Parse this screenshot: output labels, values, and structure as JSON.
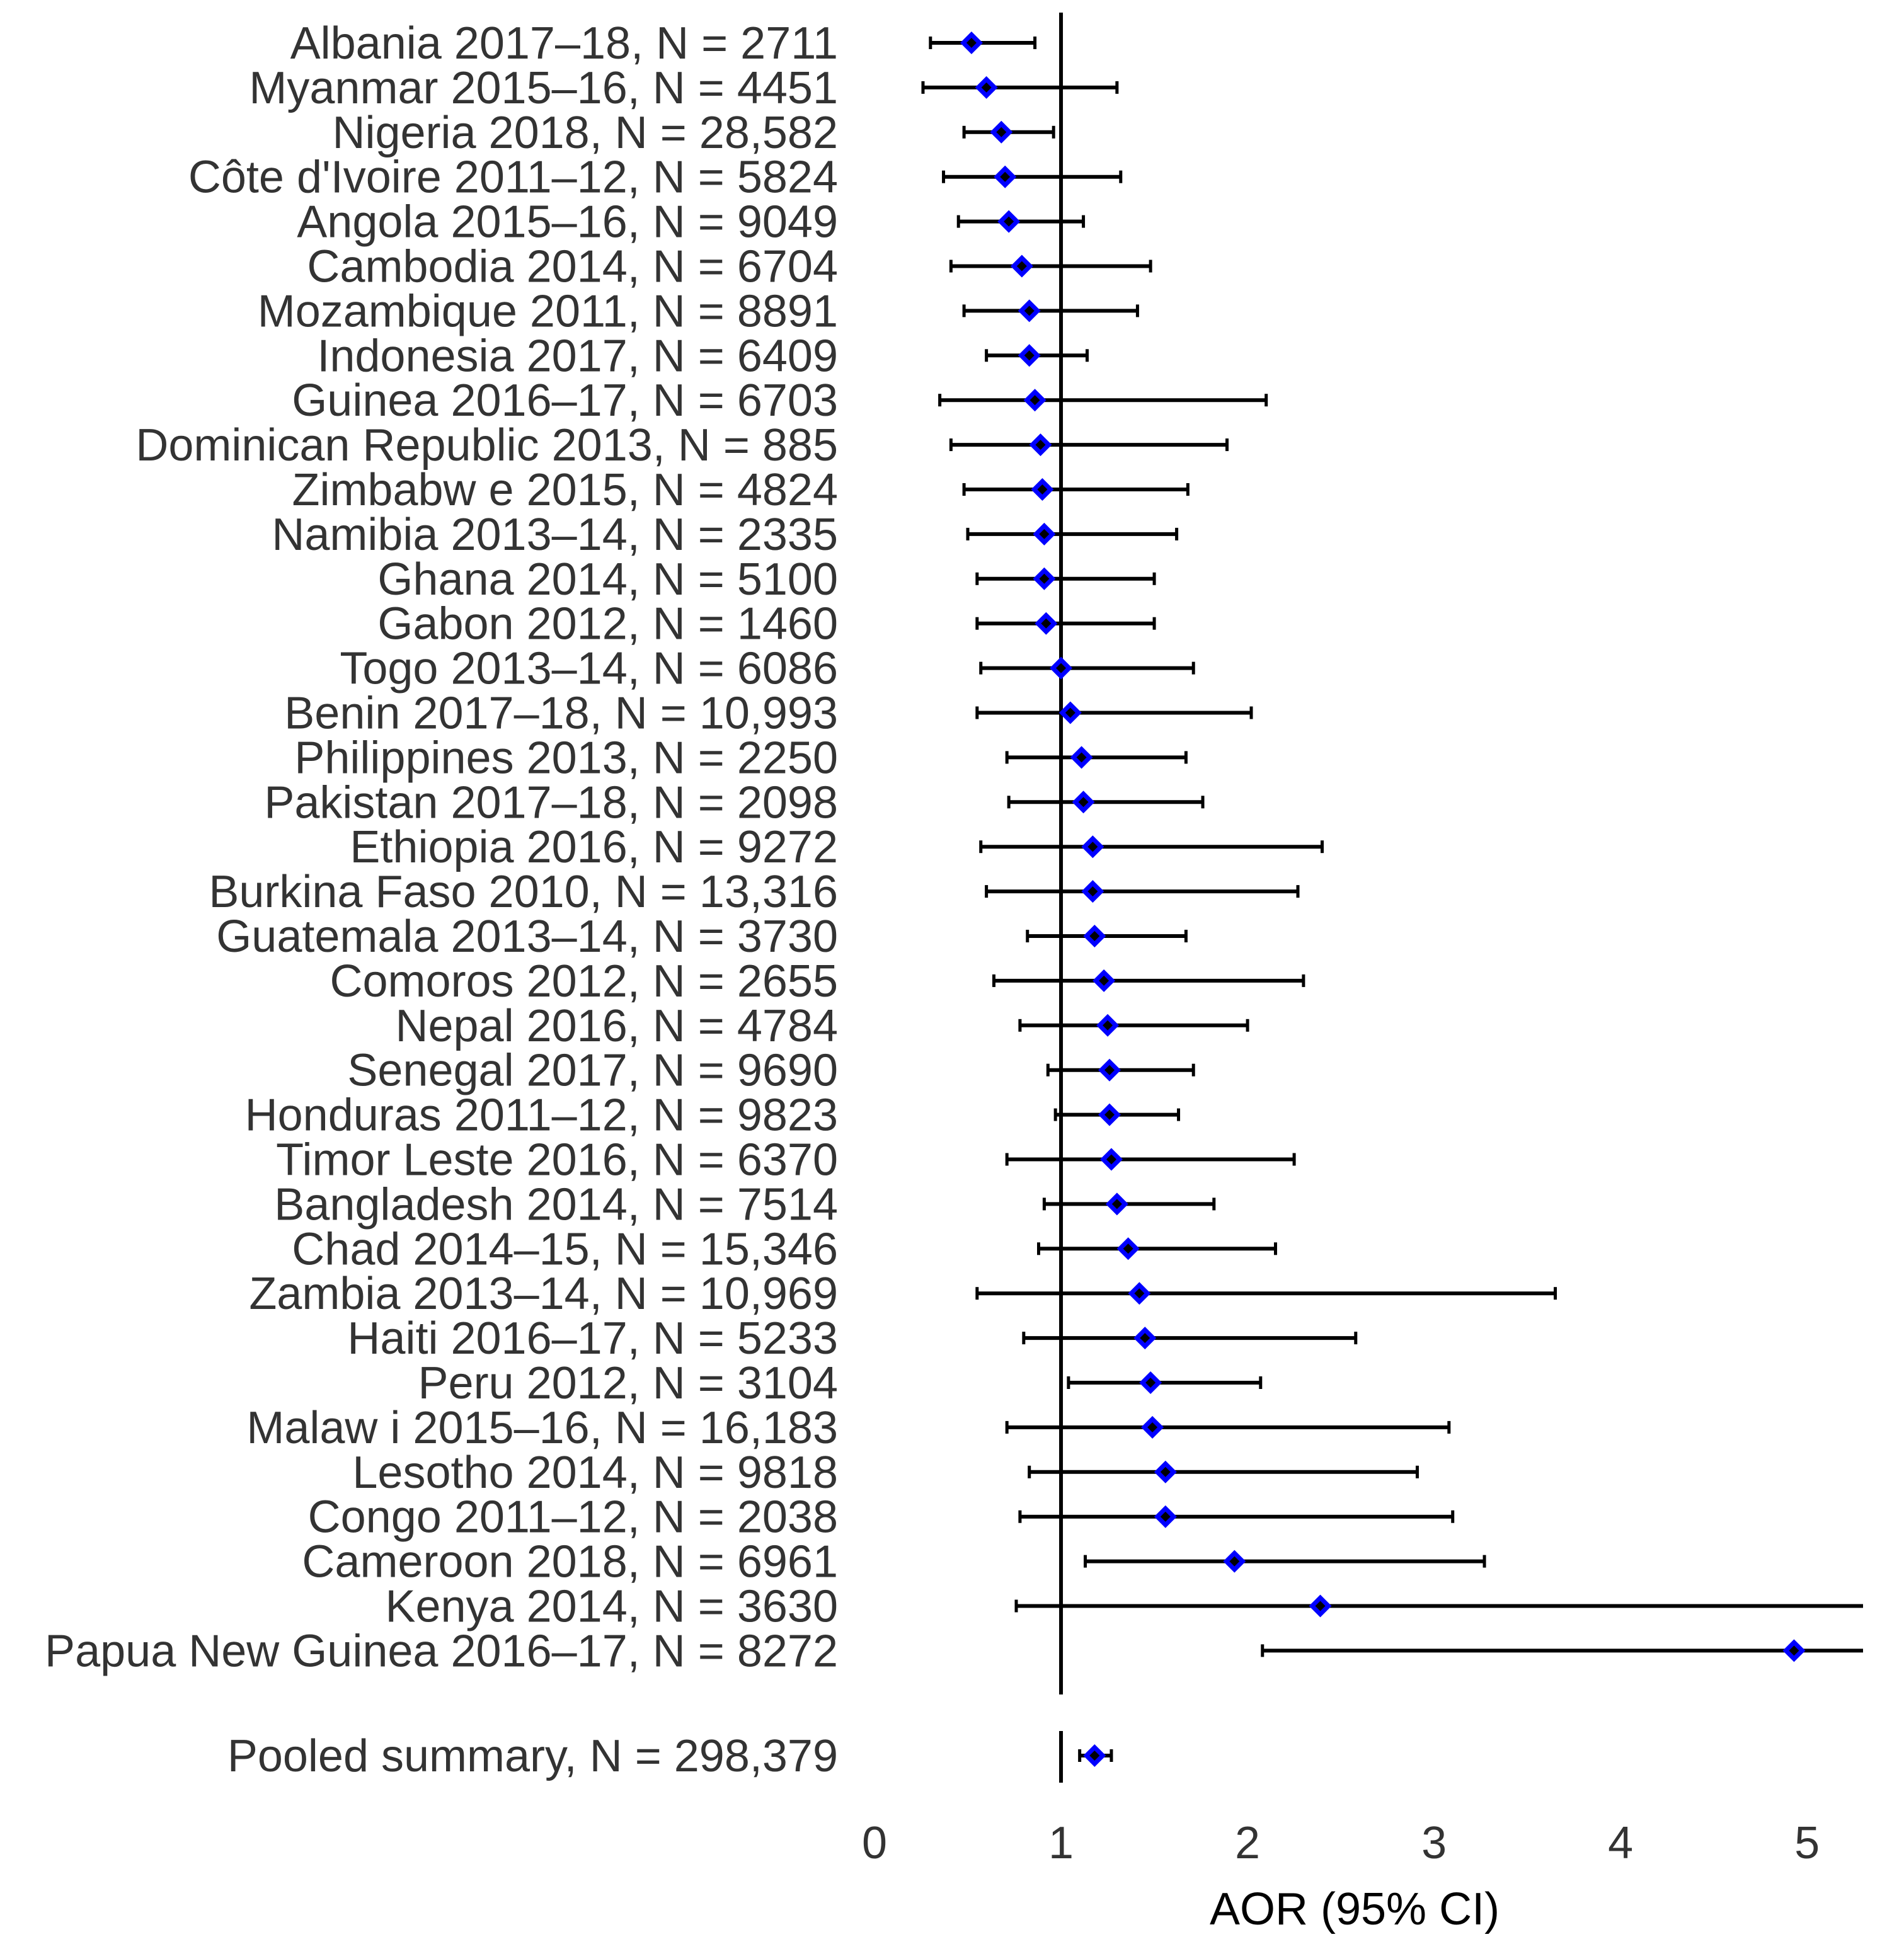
{
  "chart_data": {
    "type": "forest",
    "title": "",
    "xlabel": "AOR (95% CI)",
    "ylabel": "",
    "xlim": [
      0,
      5.3
    ],
    "xticks": [
      0,
      1,
      2,
      3,
      4,
      5
    ],
    "reference_line": 1,
    "colors": {
      "marker": "#0000ff",
      "line": "#000000",
      "text": "#333333"
    },
    "studies": [
      {
        "label": "Albania 2017–18,  N = 2711",
        "aor": 0.52,
        "lo": 0.3,
        "hi": 0.86
      },
      {
        "label": "Myanmar 2015–16,  N = 4451",
        "aor": 0.6,
        "lo": 0.26,
        "hi": 1.3
      },
      {
        "label": "Nigeria 2018,  N = 28,582",
        "aor": 0.68,
        "lo": 0.48,
        "hi": 0.96
      },
      {
        "label": "Côte d'Ivoire 2011–12,  N = 5824",
        "aor": 0.7,
        "lo": 0.37,
        "hi": 1.32
      },
      {
        "label": "Angola 2015–16,  N = 9049",
        "aor": 0.72,
        "lo": 0.45,
        "hi": 1.12
      },
      {
        "label": "Cambodia 2014,  N = 6704",
        "aor": 0.79,
        "lo": 0.41,
        "hi": 1.48
      },
      {
        "label": "Mozambique 2011,  N = 8891",
        "aor": 0.83,
        "lo": 0.48,
        "hi": 1.41
      },
      {
        "label": "Indonesia 2017,  N = 6409",
        "aor": 0.83,
        "lo": 0.6,
        "hi": 1.14
      },
      {
        "label": "Guinea 2016–17,  N = 6703",
        "aor": 0.86,
        "lo": 0.35,
        "hi": 2.1
      },
      {
        "label": "Dominican Republic 2013,  N = 885",
        "aor": 0.89,
        "lo": 0.41,
        "hi": 1.89
      },
      {
        "label": "Zimbabw e 2015,  N = 4824",
        "aor": 0.9,
        "lo": 0.48,
        "hi": 1.68
      },
      {
        "label": "Namibia 2013–14,  N = 2335",
        "aor": 0.91,
        "lo": 0.5,
        "hi": 1.62
      },
      {
        "label": "Ghana 2014,  N = 5100",
        "aor": 0.91,
        "lo": 0.55,
        "hi": 1.5
      },
      {
        "label": "Gabon 2012,  N = 1460",
        "aor": 0.92,
        "lo": 0.55,
        "hi": 1.5
      },
      {
        "label": "Togo 2013–14,  N = 6086",
        "aor": 1.0,
        "lo": 0.57,
        "hi": 1.71
      },
      {
        "label": "Benin 2017–18,  N = 10,993",
        "aor": 1.05,
        "lo": 0.55,
        "hi": 2.02
      },
      {
        "label": "Philippines 2013,  N = 2250",
        "aor": 1.11,
        "lo": 0.71,
        "hi": 1.67
      },
      {
        "label": "Pakistan 2017–18,  N = 2098",
        "aor": 1.12,
        "lo": 0.72,
        "hi": 1.76
      },
      {
        "label": "Ethiopia 2016,  N = 9272",
        "aor": 1.17,
        "lo": 0.57,
        "hi": 2.4
      },
      {
        "label": "Burkina Faso 2010,  N = 13,316",
        "aor": 1.17,
        "lo": 0.6,
        "hi": 2.27
      },
      {
        "label": "Guatemala 2013–14,  N = 3730",
        "aor": 1.18,
        "lo": 0.82,
        "hi": 1.67
      },
      {
        "label": "Comoros 2012,  N = 2655",
        "aor": 1.23,
        "lo": 0.64,
        "hi": 2.3
      },
      {
        "label": "Nepal 2016,  N = 4784",
        "aor": 1.25,
        "lo": 0.78,
        "hi": 2.0
      },
      {
        "label": "Senegal 2017,  N = 9690",
        "aor": 1.26,
        "lo": 0.93,
        "hi": 1.71
      },
      {
        "label": "Honduras 2011–12,  N = 9823",
        "aor": 1.26,
        "lo": 0.97,
        "hi": 1.63
      },
      {
        "label": "Timor Leste 2016,  N = 6370",
        "aor": 1.27,
        "lo": 0.71,
        "hi": 2.25
      },
      {
        "label": "Bangladesh 2014,  N = 7514",
        "aor": 1.3,
        "lo": 0.91,
        "hi": 1.82
      },
      {
        "label": "Chad 2014–15,  N = 15,346",
        "aor": 1.36,
        "lo": 0.88,
        "hi": 2.15
      },
      {
        "label": "Zambia 2013–14,  N = 10,969",
        "aor": 1.42,
        "lo": 0.55,
        "hi": 3.65
      },
      {
        "label": "Haiti 2016–17,  N = 5233",
        "aor": 1.45,
        "lo": 0.8,
        "hi": 2.58
      },
      {
        "label": "Peru 2012,  N = 3104",
        "aor": 1.48,
        "lo": 1.04,
        "hi": 2.07
      },
      {
        "label": "Malaw i 2015–16,  N = 16,183",
        "aor": 1.49,
        "lo": 0.71,
        "hi": 3.08
      },
      {
        "label": "Lesotho 2014,  N = 9818",
        "aor": 1.56,
        "lo": 0.83,
        "hi": 2.91
      },
      {
        "label": "Congo 2011–12,  N = 2038",
        "aor": 1.56,
        "lo": 0.78,
        "hi": 3.1
      },
      {
        "label": "Cameroon 2018,  N = 6961",
        "aor": 1.93,
        "lo": 1.13,
        "hi": 3.27
      },
      {
        "label": "Kenya 2014,  N = 3630",
        "aor": 2.39,
        "lo": 0.76,
        "hi": 5.3
      },
      {
        "label": "Papua New  Guinea 2016–17,  N = 8272",
        "aor": 4.93,
        "lo": 2.08,
        "hi": 5.3
      }
    ],
    "pooled": {
      "label": "Pooled summary,  N = 298,379",
      "aor": 1.18,
      "lo": 1.1,
      "hi": 1.27
    }
  }
}
